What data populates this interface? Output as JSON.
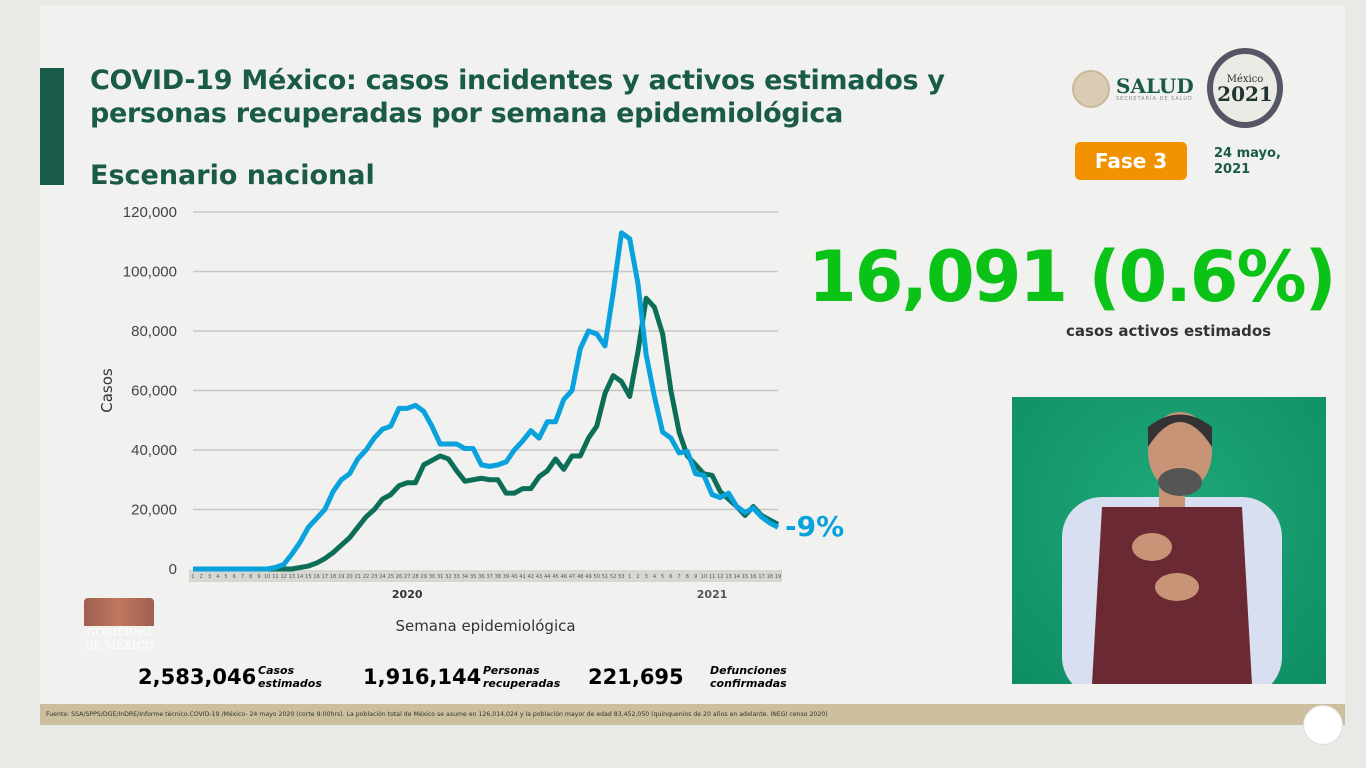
{
  "header": {
    "title_line1": "COVID-19 México: casos incidentes y activos estimados y",
    "title_line2": "personas recuperadas por semana epidemiológica",
    "subtitle": "Escenario nacional"
  },
  "logos": {
    "salud": "SALUD",
    "salud_sub": "SECRETARÍA DE SALUD",
    "year_logo_top": "México",
    "year_logo_year": "2021",
    "gobierno": "GOBIERNO DE MÉXICO"
  },
  "phase": "Fase 3",
  "date": "24 mayo, 2021",
  "active": {
    "value": "16,091 (0.6%)",
    "label": "casos activos estimados"
  },
  "change_label": "-9%",
  "stats": [
    {
      "value": "2,583,046",
      "label1": "Casos",
      "label2": "estimados",
      "color": "#0aa2dc",
      "bg": "#bfe8f2"
    },
    {
      "value": "1,916,144",
      "label1": "Personas",
      "label2": "recuperadas",
      "color": "#0d6e58",
      "bg": "#bfe3d8"
    },
    {
      "value": "221,695",
      "label1": "Defunciones",
      "label2": "confirmadas",
      "color": "#7b6fd6",
      "bg": "#dcdaf3"
    }
  ],
  "footer": "Fuente: SSA/SPPS/DGE/InDRE/Informe técnico.COVID-19 /México- 24 mayo 2020 (corte 9:00hrs). La población total de México se asume en 126,014,024 y la población mayor de edad 83,452,050 (quinquenios de 20 años en adelante. INEGI censo 2020)",
  "chart_data": {
    "type": "line",
    "title": "",
    "xlabel": "Semana epidemiológica",
    "ylabel": "Casos",
    "ylim": [
      0,
      120000
    ],
    "yticks": [
      "0",
      "20,000",
      "40,000",
      "60,000",
      "80,000",
      "100,000",
      "120,000"
    ],
    "year_labels": [
      "2020",
      "2021"
    ],
    "grid": true,
    "x": [
      "1",
      "2",
      "3",
      "4",
      "5",
      "6",
      "7",
      "8",
      "9",
      "10",
      "11",
      "12",
      "13",
      "14",
      "15",
      "16",
      "17",
      "18",
      "19",
      "20",
      "21",
      "22",
      "23",
      "24",
      "25",
      "26",
      "27",
      "28",
      "29",
      "30",
      "31",
      "32",
      "33",
      "34",
      "35",
      "36",
      "37",
      "38",
      "39",
      "40",
      "41",
      "42",
      "43",
      "44",
      "45",
      "46",
      "47",
      "48",
      "49",
      "50",
      "51",
      "52",
      "53",
      "1",
      "2",
      "3",
      "4",
      "5",
      "6",
      "7",
      "8",
      "9",
      "10",
      "11",
      "12",
      "13",
      "14",
      "15",
      "16",
      "17",
      "18",
      "19"
    ],
    "series": [
      {
        "color": "#0aa2dc",
        "values": [
          0,
          0,
          0,
          0,
          0,
          0,
          0,
          0,
          0,
          0,
          500,
          1500,
          5000,
          9000,
          14000,
          17000,
          20000,
          26000,
          30000,
          32000,
          37000,
          40000,
          44000,
          47000,
          48000,
          54000,
          54000,
          55000,
          53000,
          48000,
          42000,
          42000,
          42000,
          40500,
          40500,
          35000,
          34500,
          35000,
          36000,
          40000,
          43000,
          46500,
          44000,
          49500,
          49500,
          57000,
          60000,
          74000,
          80000,
          79000,
          75000,
          93000,
          113000,
          111000,
          96000,
          72000,
          58000,
          46000,
          44000,
          39000,
          39500,
          32000,
          31500,
          25000,
          24000,
          25500,
          21000,
          19000,
          20500,
          17500,
          15500,
          14000
        ]
      },
      {
        "color": "#0d6e58",
        "values": [
          0,
          0,
          0,
          0,
          0,
          0,
          0,
          0,
          0,
          0,
          0,
          0,
          0,
          500,
          1000,
          2000,
          3500,
          5500,
          8000,
          10500,
          14000,
          17500,
          20000,
          23500,
          25000,
          28000,
          29000,
          29000,
          35000,
          36500,
          38000,
          37000,
          33000,
          29500,
          30000,
          30500,
          30000,
          30000,
          25500,
          25500,
          27000,
          27000,
          31000,
          33000,
          37000,
          33500,
          38000,
          38000,
          44000,
          48000,
          59000,
          65000,
          63000,
          58000,
          73000,
          91000,
          88000,
          79000,
          60000,
          46000,
          38000,
          35000,
          32000,
          31500,
          26000,
          23500,
          21000,
          18000,
          21000,
          18000,
          16500,
          15000
        ]
      }
    ]
  }
}
